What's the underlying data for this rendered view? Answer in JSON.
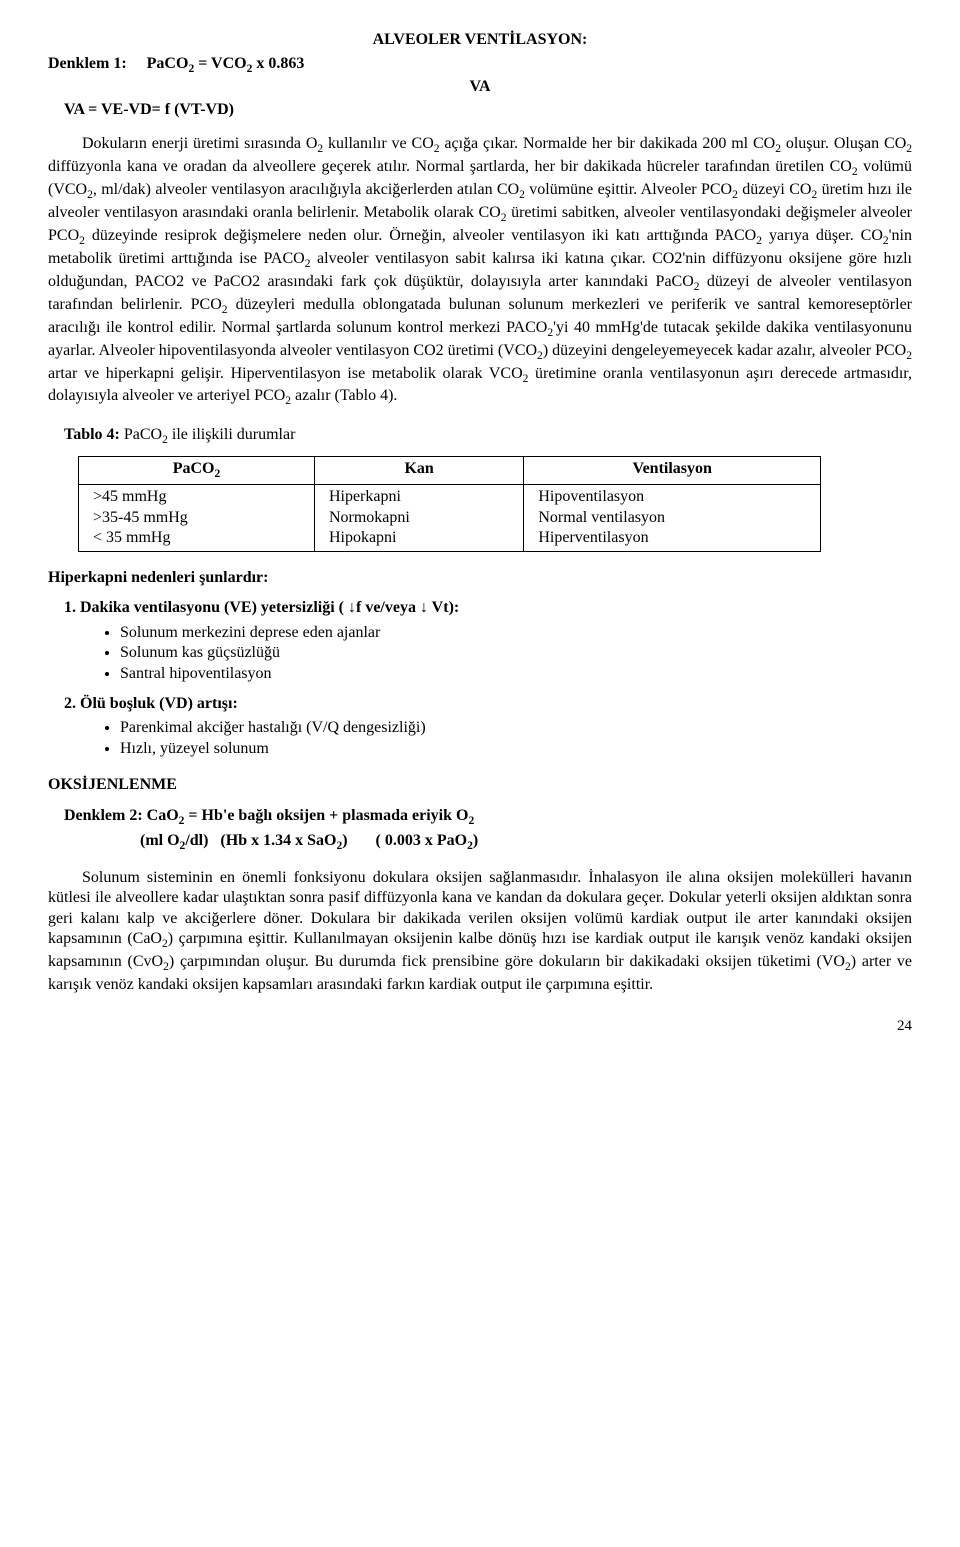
{
  "title": "ALVEOLER VENTİLASYON:",
  "eq1_label": "Denklem 1:",
  "eq1_rhs": "PaCO<sub>2</sub> = VCO<sub>2</sub> x 0.863",
  "va_line": "VA",
  "eq2": "VA = VE-VD= f (VT-VD)",
  "para1": "Dokuların enerji üretimi sırasında O<sub>2</sub> kullanılır ve CO<sub>2</sub> açığa çıkar. Normalde her bir dakikada 200 ml CO<sub>2</sub> oluşur. Oluşan CO<sub>2</sub> diffüzyonla kana ve oradan da alveollere geçerek atılır. Normal şartlarda, her bir dakikada hücreler tarafından üretilen CO<sub>2</sub> volümü (VCO<sub>2</sub>, ml/dak) alveoler ventilasyon aracılığıyla akciğerlerden atılan CO<sub>2</sub> volümüne eşittir. Alveoler PCO<sub>2</sub> düzeyi CO<sub>2</sub> üretim hızı ile alveoler ventilasyon arasındaki oranla belirlenir. Metabolik olarak CO<sub>2</sub> üretimi sabitken, alveoler ventilasyondaki değişmeler alveoler PCO<sub>2</sub> düzeyinde resiprok değişmelere neden olur. Örneğin, alveoler ventilasyon iki katı arttığında PACO<sub>2</sub> yarıya düşer. CO<sub>2</sub>'nin metabolik üretimi arttığında ise PACO<sub>2</sub> alveoler ventilasyon sabit kalırsa iki katına çıkar. CO2'nin diffüzyonu oksijene göre hızlı olduğundan, PACO2 ve PaCO2 arasındaki fark çok düşüktür, dolayısıyla arter kanındaki PaCO<sub>2</sub> düzeyi de alveoler ventilasyon tarafından belirlenir. PCO<sub>2</sub> düzeyleri medulla oblongatada bulunan solunum merkezleri ve periferik ve santral kemoreseptörler aracılığı ile kontrol edilir. Normal şartlarda solunum kontrol merkezi PACO<sub>2</sub>'yi 40 mmHg'de tutacak şekilde dakika ventilasyonunu ayarlar. Alveoler hipoventilasyonda alveoler ventilasyon CO2 üretimi (VCO<sub>2</sub>) düzeyini dengeleyemeyecek kadar azalır, alveoler PCO<sub>2</sub> artar ve hiperkapni gelişir. Hiperventilasyon ise metabolik olarak VCO<sub>2</sub> üretimine oranla ventilasyonun aşırı derecede artmasıdır, dolayısıyla alveoler ve arteriyel PCO<sub>2</sub> azalır (Tablo 4).",
  "tablo_hdr": "Tablo 4:",
  "tablo_hdr_rest": " PaCO<sub>2</sub> ile ilişkili durumlar",
  "table": {
    "headers": [
      "PaCO<sub>2</sub>",
      "Kan",
      "Ventilasyon"
    ],
    "rows": [
      [
        ">45 mmHg",
        "Hiperkapni",
        "Hipoventilasyon"
      ],
      [
        ">35-45 mmHg",
        "Normokapni",
        "Normal ventilasyon"
      ],
      [
        "< 35 mmHg",
        "Hipokapni",
        "Hiperventilasyon"
      ]
    ]
  },
  "hiper_hdr": "Hiperkapni nedenleri şunlardır:",
  "s1_hdr": "1. Dakika ventilasyonu (VE) yetersizliği ( ↓f ve/veya ↓ Vt):",
  "s1_items": [
    "Solunum merkezini deprese eden ajanlar",
    "Solunum kas güçsüzlüğü",
    "Santral hipoventilasyon"
  ],
  "s2_hdr": "2. Ölü boşluk (VD) artışı:",
  "s2_items": [
    "Parenkimal akciğer hastalığı (V/Q dengesizliği)",
    "Hızlı, yüzeyel solunum"
  ],
  "oksi_hdr": "OKSİJENLENME",
  "denklem2_l1": "Denklem 2: CaO<sub>2</sub> = Hb'e bağlı oksijen + plasmada eriyik O<sub>2</sub>",
  "denklem2_l2": "(ml O<sub>2</sub>/dl)&nbsp;&nbsp;&nbsp;(Hb x 1.34 x SaO<sub>2</sub>)&nbsp;&nbsp;&nbsp;&nbsp;&nbsp;&nbsp;&nbsp;( 0.003 x PaO<sub>2</sub>)",
  "para2": "Solunum sisteminin en önemli fonksiyonu dokulara oksijen sağlanmasıdır. İnhalasyon ile alına oksijen molekülleri havanın kütlesi ile alveollere kadar ulaştıktan sonra pasif diffüzyonla kana ve kandan da dokulara geçer. Dokular yeterli oksijen aldıktan sonra geri kalanı kalp ve akciğerlere döner. Dokulara bir dakikada verilen oksijen volümü kardiak output ile arter kanındaki oksijen kapsamının (CaO<sub>2</sub>) çarpımına eşittir. Kullanılmayan oksijenin kalbe dönüş hızı ise kardiak output ile karışık venöz kandaki oksijen kapsamının (CvO<sub>2</sub>) çarpımından oluşur. Bu durumda fick prensibine göre dokuların bir dakikadaki oksijen tüketimi (VO<sub>2</sub>) arter ve karışık venöz kandaki oksijen kapsamları arasındaki farkın kardiak output ile çarpımına eşittir.",
  "pagenum": "24"
}
